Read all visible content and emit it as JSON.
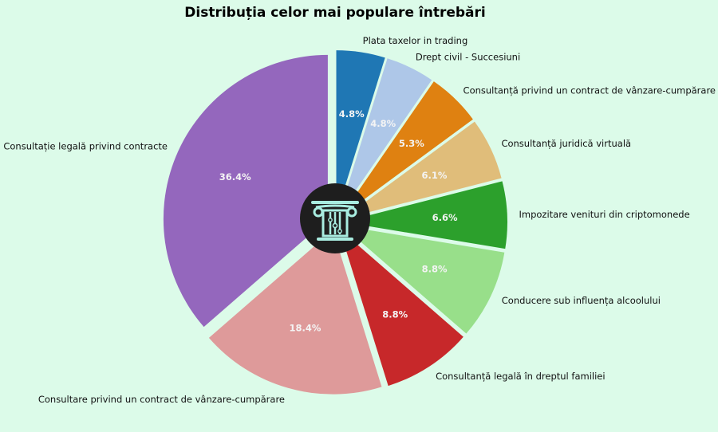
{
  "chart_data": {
    "type": "pie",
    "title": "Distribuția celor mai populare întrebări",
    "categories": [
      "Plata taxelor in trading",
      "Drept civil - Succesiuni",
      "Consultanță privind un contract de vânzare-cumpărare",
      "Consultanță juridică virtuală",
      "Impozitare venituri din criptomonede",
      "Conducere sub influența alcoolului",
      "Consultanță legală în dreptul familiei",
      "Consultare privind un contract de vânzare-cumpărare",
      "Consultație legală privind contracte"
    ],
    "values": [
      4.8,
      4.8,
      5.3,
      6.1,
      6.6,
      8.8,
      8.8,
      18.4,
      36.4
    ],
    "value_labels": [
      "4.8%",
      "4.8%",
      "5.3%",
      "6.1%",
      "6.6%",
      "8.8%",
      "8.8%",
      "18.4%",
      "36.4%"
    ],
    "colors": [
      "#1f77b4",
      "#aec7e8",
      "#df8111",
      "#e0bd7a",
      "#2ca02c",
      "#98df8a",
      "#c7282a",
      "#de9a9a",
      "#9467bd"
    ],
    "start": "12 o'clock",
    "direction": "clockwise",
    "exploded": true,
    "center_icon": "greek-column-logo-icon"
  }
}
